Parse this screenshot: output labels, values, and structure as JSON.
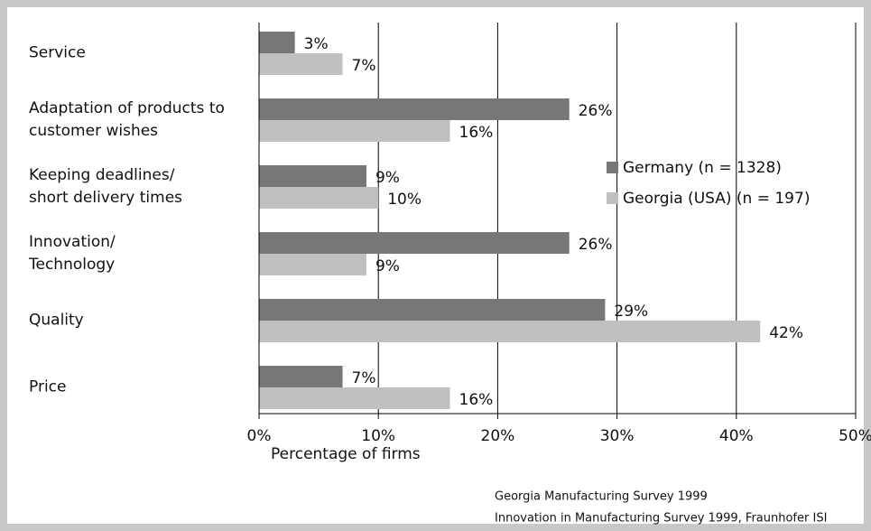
{
  "chart_data": {
    "type": "hbar",
    "categories": [
      "Service",
      "Adaptation of products to\ncustomer wishes",
      "Keeping deadlines/\nshort delivery times",
      "Innovation/\nTechnology",
      "Quality",
      "Price"
    ],
    "series": [
      {
        "name": "Germany (n = 1328)",
        "color": "#777777",
        "values": [
          3,
          26,
          9,
          26,
          29,
          7
        ],
        "value_labels": [
          "3%",
          "26%",
          "9%",
          "26%",
          "29%",
          "7%"
        ]
      },
      {
        "name": "Georgia (USA) (n = 197)",
        "color": "#c0c0c0",
        "values": [
          7,
          16,
          10,
          9,
          42,
          16
        ],
        "value_labels": [
          "7%",
          "16%",
          "10%",
          "9%",
          "42%",
          "16%"
        ]
      }
    ],
    "xlim": [
      0,
      50
    ],
    "xticks": [
      {
        "value": 0,
        "label": "0%"
      },
      {
        "value": 10,
        "label": "10%"
      },
      {
        "value": 20,
        "label": "20%"
      },
      {
        "value": 30,
        "label": "30%"
      },
      {
        "value": 40,
        "label": "40%"
      },
      {
        "value": 50,
        "label": "50%"
      }
    ],
    "xlabel": "Percentage of firms",
    "grid": true,
    "legend": "right",
    "sources": [
      "Georgia Manufacturing Survey 1999",
      "Innovation in  Manufacturing  Survey 1999, Fraunhofer ISI"
    ]
  }
}
